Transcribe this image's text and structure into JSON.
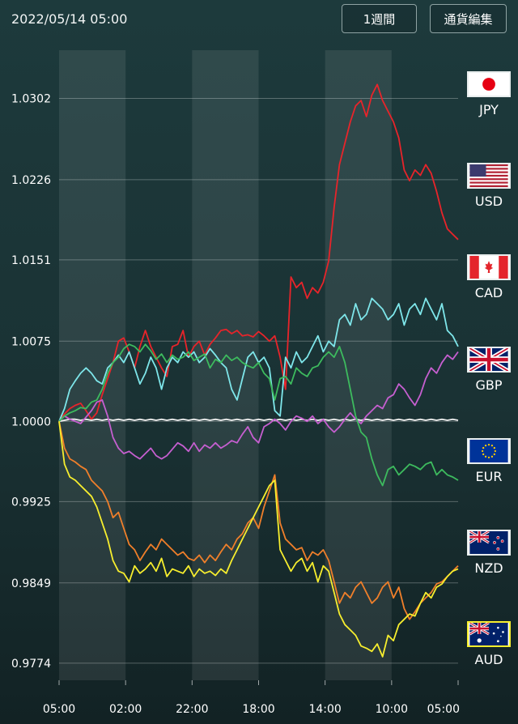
{
  "header": {
    "datetime": "2022/05/14 05:00",
    "period_button": "1週間",
    "currency_button": "通貨編集"
  },
  "chart_data": {
    "type": "line",
    "x_ticks": [
      "05:00",
      "02:00",
      "22:00",
      "18:00",
      "14:00",
      "10:00",
      "05:00"
    ],
    "y_ticks": [
      1.0302,
      1.0226,
      1.0151,
      1.0075,
      1.0,
      0.9925,
      0.9849,
      0.9774
    ],
    "ylim": [
      0.9758,
      1.0347
    ],
    "grid": true,
    "legend": "right",
    "series": [
      {
        "name": "JPY",
        "color": "#e8242a",
        "values": [
          1.0,
          1.0007,
          1.0012,
          1.0015,
          1.0017,
          1.001,
          1.0002,
          1.0008,
          1.0025,
          1.004,
          1.0055,
          1.0075,
          1.0078,
          1.0065,
          1.005,
          1.007,
          1.0085,
          1.007,
          1.006,
          1.005,
          1.0042,
          1.007,
          1.0072,
          1.0085,
          1.006,
          1.007,
          1.0075,
          1.0062,
          1.0072,
          1.0078,
          1.0085,
          1.0086,
          1.0082,
          1.0085,
          1.008,
          1.0081,
          1.0079,
          1.0084,
          1.008,
          1.0075,
          1.008,
          1.006,
          1.003,
          1.0135,
          1.0125,
          1.013,
          1.0115,
          1.0125,
          1.012,
          1.013,
          1.015,
          1.02,
          1.024,
          1.026,
          1.028,
          1.0295,
          1.03,
          1.0285,
          1.0305,
          1.0315,
          1.03,
          1.029,
          1.028,
          1.0265,
          1.0235,
          1.0225,
          1.0235,
          1.023,
          1.024,
          1.0232,
          1.0215,
          1.0195,
          1.018,
          1.0175,
          1.017
        ]
      },
      {
        "name": "USD",
        "color": "#f2f2f2",
        "values": [
          1.0,
          1.0001,
          1.0002,
          1.0002,
          1.0001,
          1.0002,
          1.0001,
          1.0002,
          1.0001,
          1.0002,
          1.0001,
          1.0002,
          1.0001,
          1.0002,
          1.0001,
          1.0002,
          1.0001,
          1.0002,
          1.0001,
          1.0002,
          1.0001,
          1.0002,
          1.0001,
          1.0002,
          1.0001,
          1.0002,
          1.0001,
          1.0002,
          1.0001,
          1.0002,
          1.0001,
          1.0002,
          1.0001,
          1.0002,
          1.0001,
          1.0002,
          1.0001,
          1.0002,
          1.0001,
          1.0002,
          1.0001,
          1.0002,
          1.0001,
          1.0002,
          1.0001,
          1.0002,
          1.0001,
          1.0002,
          1.0001,
          1.0002,
          1.0001,
          1.0002,
          1.0001,
          1.0002,
          1.0001,
          1.0002,
          1.0001,
          1.0002,
          1.0001,
          1.0002,
          1.0001,
          1.0002,
          1.0001,
          1.0002,
          1.0001,
          1.0002,
          1.0001,
          1.0002,
          1.0001,
          1.0002,
          1.0001,
          1.0002,
          1.0001,
          1.0002,
          1.0001
        ]
      },
      {
        "name": "CAD",
        "color": "#7ee6ea",
        "values": [
          1.0,
          1.0012,
          1.003,
          1.0038,
          1.0045,
          1.005,
          1.0045,
          1.0038,
          1.0035,
          1.005,
          1.0055,
          1.0062,
          1.0055,
          1.0065,
          1.005,
          1.0035,
          1.0045,
          1.006,
          1.005,
          1.003,
          1.005,
          1.006,
          1.0055,
          1.0065,
          1.006,
          1.0065,
          1.0055,
          1.006,
          1.0068,
          1.0062,
          1.0055,
          1.005,
          1.003,
          1.002,
          1.004,
          1.006,
          1.0065,
          1.0055,
          1.006,
          1.005,
          1.001,
          1.0005,
          1.006,
          1.005,
          1.0065,
          1.0055,
          1.006,
          1.007,
          1.008,
          1.0065,
          1.0075,
          1.007,
          1.0095,
          1.01,
          1.009,
          1.011,
          1.0095,
          1.01,
          1.0115,
          1.011,
          1.0105,
          1.0095,
          1.01,
          1.011,
          1.009,
          1.0105,
          1.011,
          1.01,
          1.0115,
          1.0105,
          1.0095,
          1.011,
          1.0085,
          1.008,
          1.007
        ]
      },
      {
        "name": "GBP",
        "color": "#c65fd0",
        "values": [
          1.0,
          1.0005,
          1.0002,
          1.0,
          0.9998,
          1.0004,
          1.001,
          1.0018,
          1.002,
          1.0005,
          0.9985,
          0.9975,
          0.997,
          0.9972,
          0.9968,
          0.9965,
          0.997,
          0.9975,
          0.9968,
          0.9965,
          0.9968,
          0.9974,
          0.998,
          0.9977,
          0.9972,
          0.998,
          0.9972,
          0.9978,
          0.9975,
          0.998,
          0.9975,
          0.9978,
          0.9982,
          0.998,
          0.9988,
          0.9995,
          0.9985,
          0.998,
          0.9995,
          0.9998,
          1.0002,
          0.9998,
          0.9992,
          1.0,
          1.0005,
          1.0003,
          1.0,
          1.0005,
          0.9998,
          1.0002,
          0.9995,
          0.999,
          0.9995,
          1.0002,
          1.0008,
          1.0002,
          0.9998,
          1.0005,
          1.001,
          1.0015,
          1.0012,
          1.0022,
          1.0025,
          1.0035,
          1.003,
          1.0022,
          1.0015,
          1.0025,
          1.004,
          1.005,
          1.0045,
          1.0055,
          1.0062,
          1.0058,
          1.0065
        ]
      },
      {
        "name": "EUR",
        "color": "#3dbb5e",
        "values": [
          1.0,
          1.0005,
          1.0008,
          1.001,
          1.0013,
          1.0012,
          1.0018,
          1.002,
          1.003,
          1.0045,
          1.0055,
          1.006,
          1.0068,
          1.0072,
          1.007,
          1.0065,
          1.0072,
          1.0066,
          1.0058,
          1.0063,
          1.0055,
          1.0062,
          1.0058,
          1.006,
          1.0065,
          1.0057,
          1.006,
          1.0063,
          1.005,
          1.0058,
          1.0055,
          1.0062,
          1.0057,
          1.006,
          1.0055,
          1.0052,
          1.005,
          1.0055,
          1.0045,
          1.004,
          1.002,
          1.004,
          1.0042,
          1.0035,
          1.005,
          1.0045,
          1.0042,
          1.005,
          1.0052,
          1.006,
          1.0065,
          1.006,
          1.007,
          1.0055,
          1.003,
          1.0005,
          0.999,
          0.9985,
          0.9965,
          0.995,
          0.994,
          0.9955,
          0.9958,
          0.995,
          0.9955,
          0.996,
          0.9958,
          0.9955,
          0.996,
          0.9962,
          0.995,
          0.9955,
          0.995,
          0.9948,
          0.9945
        ]
      },
      {
        "name": "NZD",
        "color": "#f07f2a",
        "values": [
          1.0,
          0.9975,
          0.9965,
          0.9962,
          0.9958,
          0.9955,
          0.9945,
          0.994,
          0.9935,
          0.9925,
          0.991,
          0.9915,
          0.99,
          0.9885,
          0.988,
          0.987,
          0.9878,
          0.9885,
          0.988,
          0.989,
          0.9885,
          0.988,
          0.9875,
          0.9878,
          0.9872,
          0.987,
          0.9875,
          0.9868,
          0.9875,
          0.987,
          0.9878,
          0.9885,
          0.988,
          0.989,
          0.9895,
          0.9905,
          0.991,
          0.99,
          0.992,
          0.9935,
          0.995,
          0.9905,
          0.989,
          0.9885,
          0.988,
          0.9882,
          0.987,
          0.9878,
          0.9875,
          0.988,
          0.987,
          0.985,
          0.983,
          0.984,
          0.9835,
          0.9845,
          0.985,
          0.984,
          0.983,
          0.9835,
          0.9845,
          0.985,
          0.9835,
          0.9845,
          0.9825,
          0.9815,
          0.9822,
          0.983,
          0.9835,
          0.984,
          0.9848,
          0.985,
          0.9855,
          0.986,
          0.9865
        ]
      },
      {
        "name": "AUD",
        "color": "#f7ee2e",
        "values": [
          1.0,
          0.996,
          0.9948,
          0.9945,
          0.994,
          0.9935,
          0.993,
          0.992,
          0.9905,
          0.989,
          0.987,
          0.986,
          0.9858,
          0.985,
          0.9865,
          0.9858,
          0.9862,
          0.9868,
          0.986,
          0.9872,
          0.9855,
          0.9862,
          0.986,
          0.9858,
          0.9865,
          0.9855,
          0.9862,
          0.9858,
          0.986,
          0.9856,
          0.9862,
          0.9858,
          0.987,
          0.988,
          0.989,
          0.99,
          0.991,
          0.992,
          0.993,
          0.994,
          0.9945,
          0.988,
          0.987,
          0.986,
          0.9868,
          0.9872,
          0.986,
          0.9868,
          0.985,
          0.9865,
          0.986,
          0.984,
          0.982,
          0.981,
          0.9805,
          0.98,
          0.979,
          0.9788,
          0.9785,
          0.9792,
          0.978,
          0.98,
          0.9795,
          0.981,
          0.9815,
          0.982,
          0.9818,
          0.983,
          0.984,
          0.9835,
          0.9845,
          0.9848,
          0.9855,
          0.986,
          0.9862
        ]
      }
    ]
  },
  "legend_items": [
    {
      "key": "JPY",
      "label": "JPY"
    },
    {
      "key": "USD",
      "label": "USD"
    },
    {
      "key": "CAD",
      "label": "CAD"
    },
    {
      "key": "GBP",
      "label": "GBP"
    },
    {
      "key": "EUR",
      "label": "EUR"
    },
    {
      "key": "NZD",
      "label": "NZD"
    },
    {
      "key": "AUD",
      "label": "AUD"
    }
  ]
}
